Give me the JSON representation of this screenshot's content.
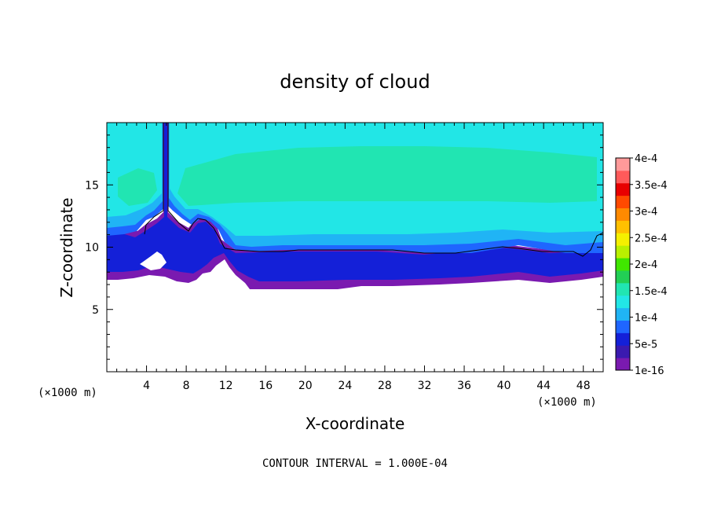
{
  "chart_data": {
    "type": "heatmap",
    "title": "density of cloud",
    "xlabel": "X-coordinate",
    "ylabel": "Z-coordinate",
    "x_unit": "(×1000 m)",
    "z_unit": "(×1000 m)",
    "xlim": [
      0,
      50
    ],
    "zlim": [
      0,
      20
    ],
    "x_ticks": [
      4,
      8,
      12,
      16,
      20,
      24,
      28,
      32,
      36,
      40,
      44,
      48
    ],
    "z_ticks": [
      5,
      10,
      15
    ],
    "colorbar": {
      "labels": [
        "1e-16",
        "5e-5",
        "1e-4",
        "1.5e-4",
        "2e-4",
        "2.5e-4",
        "3e-4",
        "3.5e-4",
        "4e-4"
      ],
      "colors": [
        "#7a1ab0",
        "#3a1ab0",
        "#1420d8",
        "#1f66ff",
        "#20b4f5",
        "#22e6e6",
        "#21e5b2",
        "#22cf55",
        "#40e600",
        "#b9f000",
        "#f5f000",
        "#ffc000",
        "#ff8a00",
        "#ff4a00",
        "#e80000",
        "#ff5a5a",
        "#ff9a9a"
      ]
    },
    "note": "CONTOUR INTERVAL = 1.000E-04",
    "cloud_layers": {
      "cloud_top_km": 20,
      "cloud_base_km": 7.2,
      "contour_line_z_km": 9.7,
      "core_band_z_km": [
        12.5,
        17.5
      ]
    }
  }
}
